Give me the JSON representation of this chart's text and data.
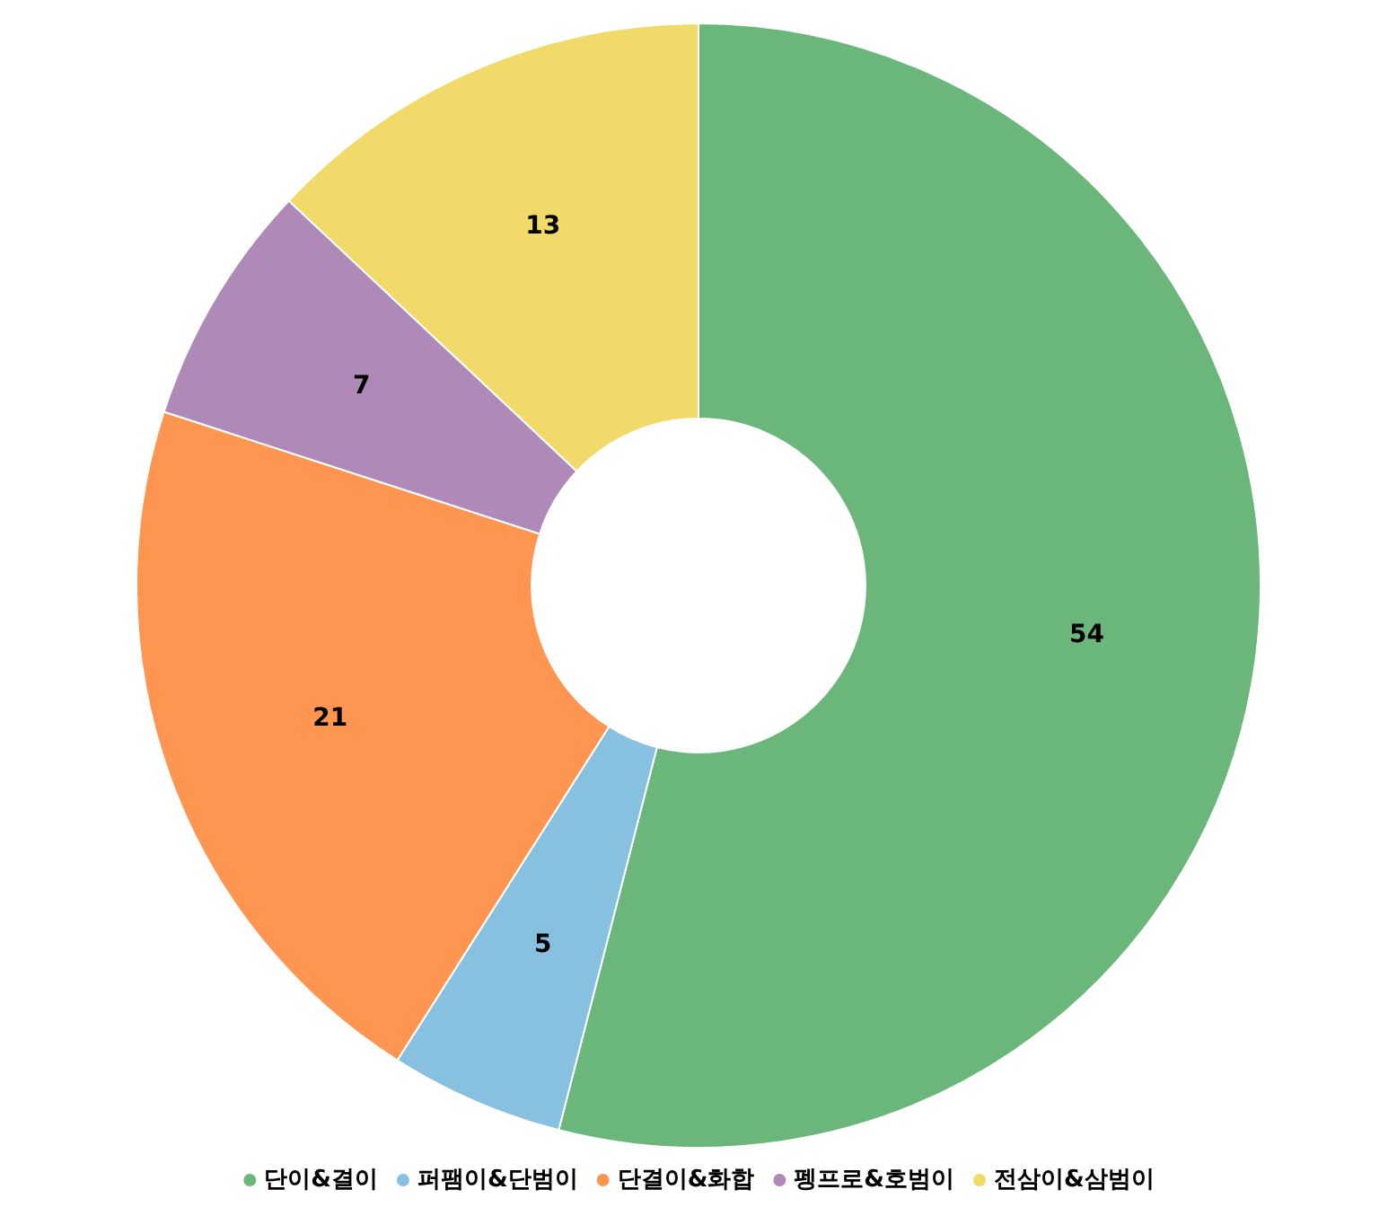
{
  "chart_data": {
    "type": "donut",
    "categories": [
      "단이&결이",
      "퍼팸이&단범이",
      "단결이&화합",
      "펭프로&호범이",
      "전삼이&삼범이"
    ],
    "values": [
      54,
      5,
      21,
      7,
      13
    ],
    "colors": [
      "#6bb77b",
      "#88c0e0",
      "#fe9550",
      "#af89b7",
      "#f1da69"
    ],
    "data_labels": true,
    "legend": "bottom"
  }
}
